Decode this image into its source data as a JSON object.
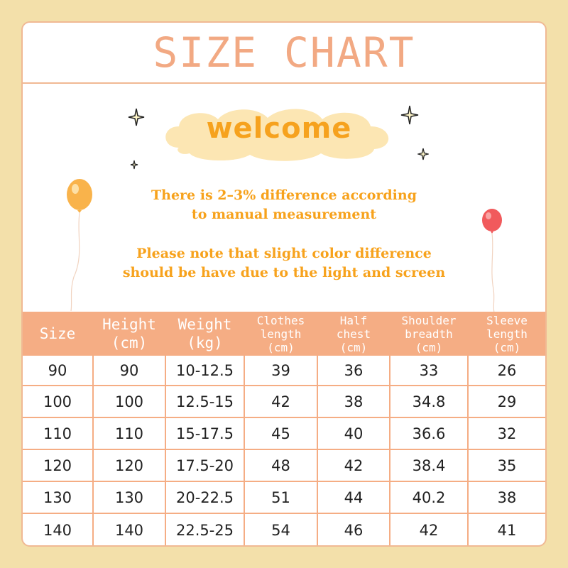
{
  "title": "SIZE CHART",
  "welcome": "welcome",
  "note1": [
    "There is 2–3% difference according",
    "to manual measurement"
  ],
  "note2": [
    "Please note that slight color difference",
    "should be have due to the light and screen"
  ],
  "colors": {
    "background": "#f3e0aa",
    "accent": "#f5ad84",
    "title": "#f2a983",
    "text_orange": "#f7a21c"
  },
  "icons": [
    "sparkle-icon",
    "balloon-icon"
  ],
  "table": {
    "headers": [
      {
        "lines": [
          "Size"
        ]
      },
      {
        "lines": [
          "Height",
          "(cm)"
        ]
      },
      {
        "lines": [
          "Weight",
          "(kg)"
        ]
      },
      {
        "lines": [
          "Clothes",
          "length",
          "(cm)"
        ]
      },
      {
        "lines": [
          "Half",
          "chest",
          "(cm)"
        ]
      },
      {
        "lines": [
          "Shoulder",
          "breadth",
          "(cm)"
        ]
      },
      {
        "lines": [
          "Sleeve",
          "length",
          "(cm)"
        ]
      }
    ],
    "rows": [
      [
        "90",
        "90",
        "10-12.5",
        "39",
        "36",
        "33",
        "26"
      ],
      [
        "100",
        "100",
        "12.5-15",
        "42",
        "38",
        "34.8",
        "29"
      ],
      [
        "110",
        "110",
        "15-17.5",
        "45",
        "40",
        "36.6",
        "32"
      ],
      [
        "120",
        "120",
        "17.5-20",
        "48",
        "42",
        "38.4",
        "35"
      ],
      [
        "130",
        "130",
        "20-22.5",
        "51",
        "44",
        "40.2",
        "38"
      ],
      [
        "140",
        "140",
        "22.5-25",
        "54",
        "46",
        "42",
        "41"
      ]
    ]
  }
}
